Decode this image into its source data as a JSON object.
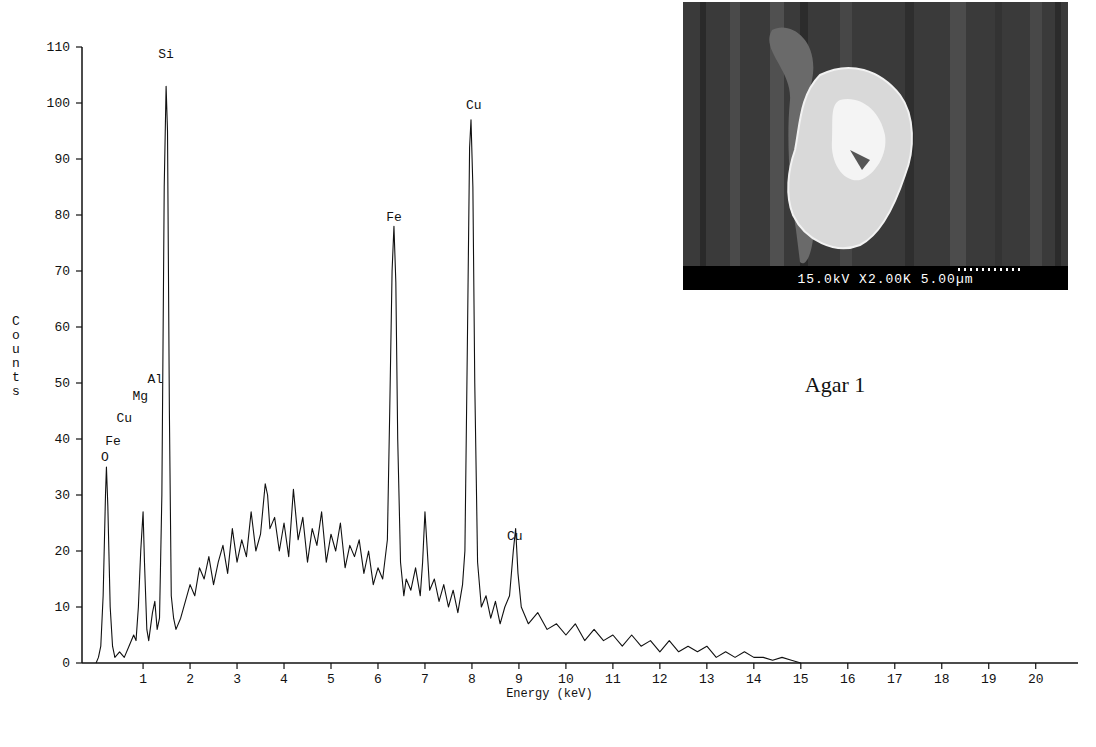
{
  "chart_data": {
    "type": "line",
    "x_label": "Energy (keV)",
    "y_label": "Counts",
    "xlim": [
      -0.3,
      20.9
    ],
    "ylim": [
      0,
      110
    ],
    "xticks": [
      1,
      2,
      3,
      4,
      5,
      6,
      7,
      8,
      9,
      10,
      11,
      12,
      13,
      14,
      15,
      16,
      17,
      18,
      19,
      20
    ],
    "yticks": [
      0,
      10,
      20,
      30,
      40,
      50,
      60,
      70,
      80,
      90,
      100,
      110
    ],
    "grid": false,
    "color": "#111111",
    "x": [
      0.0,
      0.05,
      0.1,
      0.15,
      0.2,
      0.22,
      0.25,
      0.3,
      0.35,
      0.4,
      0.5,
      0.6,
      0.7,
      0.8,
      0.85,
      0.9,
      0.95,
      1.0,
      1.03,
      1.08,
      1.12,
      1.2,
      1.25,
      1.3,
      1.35,
      1.4,
      1.45,
      1.49,
      1.52,
      1.56,
      1.6,
      1.65,
      1.7,
      1.8,
      1.9,
      2.0,
      2.1,
      2.2,
      2.3,
      2.4,
      2.5,
      2.6,
      2.7,
      2.8,
      2.9,
      3.0,
      3.1,
      3.2,
      3.3,
      3.4,
      3.5,
      3.6,
      3.65,
      3.7,
      3.8,
      3.9,
      4.0,
      4.1,
      4.2,
      4.3,
      4.4,
      4.5,
      4.6,
      4.7,
      4.8,
      4.9,
      5.0,
      5.1,
      5.2,
      5.3,
      5.4,
      5.5,
      5.6,
      5.7,
      5.8,
      5.9,
      6.0,
      6.1,
      6.2,
      6.25,
      6.3,
      6.34,
      6.38,
      6.42,
      6.48,
      6.55,
      6.6,
      6.7,
      6.8,
      6.9,
      6.95,
      7.0,
      7.05,
      7.1,
      7.2,
      7.3,
      7.4,
      7.5,
      7.6,
      7.7,
      7.8,
      7.85,
      7.9,
      7.95,
      7.98,
      8.02,
      8.06,
      8.12,
      8.2,
      8.3,
      8.4,
      8.5,
      8.6,
      8.7,
      8.8,
      8.88,
      8.93,
      8.98,
      9.05,
      9.2,
      9.4,
      9.6,
      9.8,
      10.0,
      10.2,
      10.4,
      10.6,
      10.8,
      11.0,
      11.2,
      11.4,
      11.6,
      11.8,
      12.0,
      12.2,
      12.4,
      12.6,
      12.8,
      13.0,
      13.2,
      13.4,
      13.6,
      13.8,
      14.0,
      14.2,
      14.4,
      14.6,
      14.8,
      15.0
    ],
    "values": [
      0,
      1,
      3,
      12,
      30,
      35,
      28,
      10,
      3,
      1,
      2,
      1,
      3,
      5,
      4,
      10,
      20,
      27,
      18,
      6,
      4,
      9,
      11,
      6,
      8,
      30,
      85,
      103,
      95,
      45,
      12,
      8,
      6,
      8,
      11,
      14,
      12,
      17,
      15,
      19,
      14,
      18,
      21,
      16,
      24,
      18,
      22,
      19,
      27,
      20,
      23,
      32,
      30,
      24,
      26,
      20,
      25,
      19,
      31,
      22,
      26,
      18,
      24,
      21,
      27,
      18,
      23,
      20,
      25,
      17,
      21,
      19,
      22,
      16,
      20,
      14,
      17,
      15,
      22,
      45,
      70,
      78,
      68,
      40,
      18,
      12,
      15,
      13,
      17,
      12,
      18,
      27,
      20,
      13,
      15,
      11,
      14,
      10,
      13,
      9,
      14,
      20,
      55,
      92,
      97,
      85,
      50,
      18,
      10,
      12,
      8,
      11,
      7,
      10,
      12,
      20,
      24,
      16,
      10,
      7,
      9,
      6,
      7,
      5,
      7,
      4,
      6,
      4,
      5,
      3,
      5,
      3,
      4,
      2,
      4,
      2,
      3,
      2,
      3,
      1,
      2,
      1,
      2,
      1,
      1,
      0.5,
      1,
      0.5,
      0
    ],
    "annotations": [
      {
        "text": "O",
        "x": 0.19,
        "y": 36
      },
      {
        "text": "Fe",
        "x": 0.36,
        "y": 39
      },
      {
        "text": "Cu",
        "x": 0.6,
        "y": 43
      },
      {
        "text": "Mg",
        "x": 0.94,
        "y": 47
      },
      {
        "text": "Al",
        "x": 1.26,
        "y": 50
      },
      {
        "text": "Si",
        "x": 1.49,
        "y": 108
      },
      {
        "text": "Fe",
        "x": 6.34,
        "y": 79
      },
      {
        "text": "Cu",
        "x": 8.04,
        "y": 99
      },
      {
        "text": "Cu",
        "x": 8.91,
        "y": 22
      }
    ]
  },
  "inset": {
    "scale_text": "15.0kV X2.00K 5.00µm",
    "caption": "Agar 1"
  }
}
